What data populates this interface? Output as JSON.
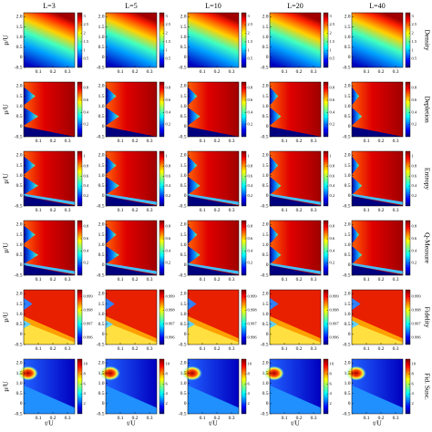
{
  "chart_data": {
    "type": "heatmap-grid",
    "columns": [
      "L=3",
      "L=5",
      "L=10",
      "L=20",
      "L=40"
    ],
    "xlabel": "t/U",
    "ylabel": "μ/U",
    "xlim": [
      0,
      0.35
    ],
    "xticks": [
      0.1,
      0.2,
      0.3
    ],
    "ylim": [
      -0.5,
      2.2
    ],
    "yticks": [
      -0.5,
      0,
      0.5,
      {
        "value": 1,
        "label": "1.0"
      },
      1.5,
      {
        "value": 2,
        "label": "2.0"
      }
    ],
    "rows": [
      {
        "label": "Density",
        "clim": [
          0,
          3.2
        ],
        "cbar_ticks": [
          0.5,
          1,
          1.5,
          2,
          2.5,
          3
        ]
      },
      {
        "label": "Depletion",
        "clim": [
          0,
          0.9
        ],
        "cbar_ticks": [
          0.2,
          0.4,
          0.6,
          0.8
        ]
      },
      {
        "label": "Entropy",
        "clim": [
          0,
          1.1
        ],
        "cbar_ticks": [
          0.2,
          0.4,
          0.6,
          0.8,
          1
        ]
      },
      {
        "label": "Q-Measure",
        "clim": [
          0,
          0.9
        ],
        "cbar_ticks": [
          0.2,
          0.4,
          0.6,
          0.8
        ]
      },
      {
        "label": "Fidelity",
        "clim": [
          0.9955,
          0.9995
        ],
        "cbar_ticks": [
          0.996,
          0.997,
          0.998,
          0.999
        ]
      },
      {
        "label": "Fid. Susc.",
        "clim": [
          0,
          11
        ],
        "cbar_ticks": [
          2,
          4,
          6,
          8,
          10
        ]
      }
    ]
  }
}
